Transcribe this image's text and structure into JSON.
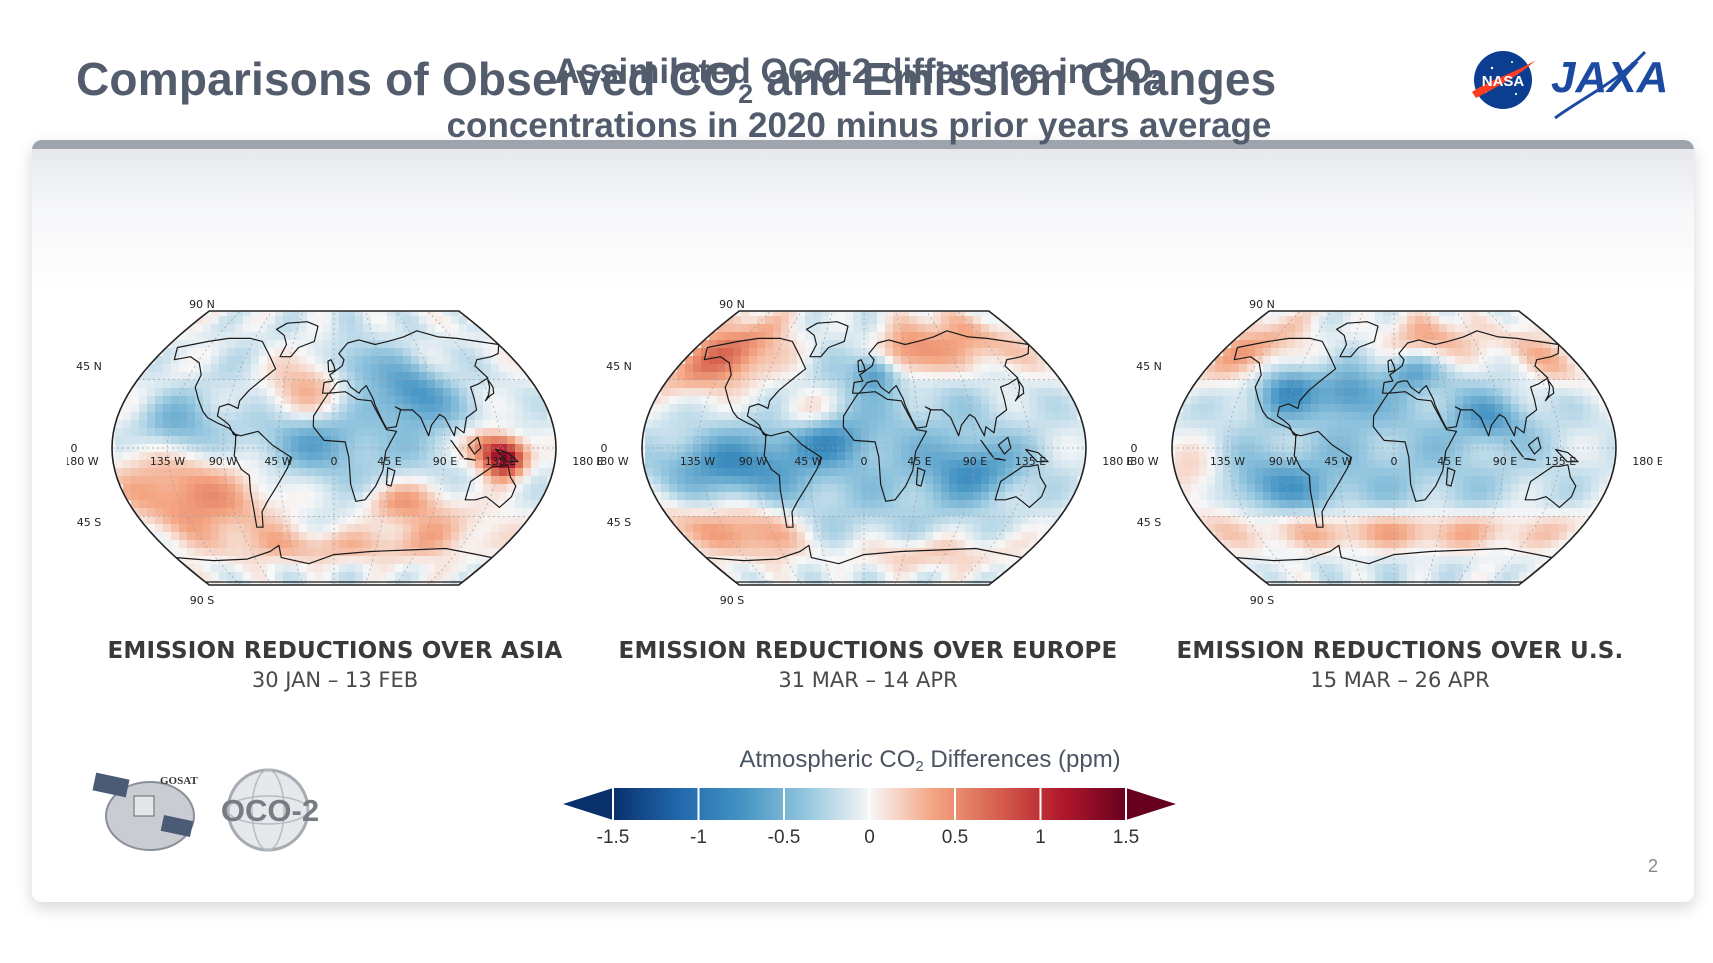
{
  "header": {
    "title_pre": "Comparisons of Observed CO",
    "title_sub": "2",
    "title_post": " and Emission Changes",
    "logos": [
      "nasa-logo",
      "jaxa-logo"
    ],
    "nasa_text": "NASA",
    "jaxa_text": "JAXA"
  },
  "figure": {
    "title_line1_pre": "Assimilated OCO-2 difference in CO",
    "title_line1_sub": "2",
    "title_line2": "concentrations in 2020 minus prior years average"
  },
  "axes_labels": {
    "lat_top": "90 N",
    "lat_45n": "45 N",
    "lat_0": "0",
    "lat_45s": "45 S",
    "lat_bottom": "90 S",
    "lon": [
      "180 W",
      "135 W",
      "90 W",
      "45 W",
      "0",
      "45 E",
      "90 E",
      "135 E",
      "180 E"
    ]
  },
  "maps": [
    {
      "caption": "EMISSION REDUCTIONS OVER ASIA",
      "dates": "30 JAN – 13 FEB"
    },
    {
      "caption": "EMISSION REDUCTIONS OVER EUROPE",
      "dates": "31 MAR – 14 APR"
    },
    {
      "caption": "EMISSION REDUCTIONS OVER U.S.",
      "dates": "15 MAR – 26 APR"
    }
  ],
  "colorbar": {
    "title_pre": "Atmospheric CO",
    "title_sub": "2",
    "title_post": " Differences (ppm)",
    "ticks": [
      "-1.5",
      "-1",
      "-0.5",
      "0",
      "0.5",
      "1",
      "1.5"
    ],
    "range": [
      -1.5,
      1.5
    ],
    "colors": [
      "#08306b",
      "#2166ac",
      "#4393c3",
      "#92c5de",
      "#f7f7f7",
      "#f4a582",
      "#d6604d",
      "#b2182b",
      "#67001f"
    ]
  },
  "mission_logos": {
    "gosat_text": "GOSAT",
    "oco2_text": "OCO-2"
  },
  "page_number": "2"
}
